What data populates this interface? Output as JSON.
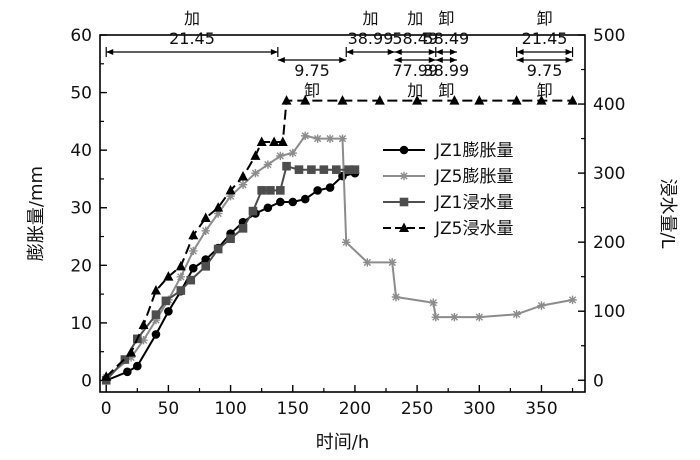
{
  "chart_data": {
    "type": "line",
    "xlabel": "时间/h",
    "ylabel_left": "膨胀量/mm",
    "ylabel_right": "浸水量/L",
    "xlim": [
      -5,
      385
    ],
    "ylim_left": [
      -2,
      60
    ],
    "ylim_right": [
      -17,
      500
    ],
    "xticks": [
      0,
      50,
      100,
      150,
      200,
      250,
      300,
      350
    ],
    "yticks_left": [
      0,
      10,
      20,
      30,
      40,
      50,
      60
    ],
    "yticks_right": [
      0,
      100,
      200,
      300,
      400,
      500
    ],
    "series": [
      {
        "name": "JZ1膨胀量",
        "axis": "left",
        "marker": "circle",
        "color": "#000000",
        "dash": "",
        "x": [
          0,
          17,
          25,
          40,
          50,
          60,
          70,
          80,
          90,
          100,
          110,
          120,
          130,
          140,
          150,
          160,
          170,
          180,
          190,
          200
        ],
        "y": [
          0,
          1.5,
          2.5,
          8,
          12,
          15.5,
          19.5,
          21,
          23,
          25.5,
          27.5,
          29,
          30,
          31,
          31,
          31.5,
          33,
          33.5,
          35.5,
          36
        ]
      },
      {
        "name": "JZ5膨胀量",
        "axis": "left",
        "marker": "star",
        "color": "#8c8c8c",
        "dash": "",
        "x": [
          0,
          20,
          30,
          40,
          50,
          60,
          70,
          80,
          90,
          100,
          110,
          120,
          130,
          140,
          150,
          160,
          170,
          180,
          190,
          193,
          210,
          230,
          233,
          263,
          265,
          280,
          300,
          330,
          350,
          375
        ],
        "y": [
          0.5,
          4,
          7,
          10.5,
          14,
          18,
          22.5,
          26,
          29,
          32,
          34,
          36,
          37.5,
          39,
          39.5,
          42.5,
          42,
          42,
          42,
          24,
          20.5,
          20.5,
          14.5,
          13.5,
          11,
          11,
          11,
          11.5,
          13,
          14
        ]
      },
      {
        "name": "JZ1浸水量",
        "axis": "right",
        "marker": "square",
        "color": "#4d4d4d",
        "dash": "",
        "x": [
          0,
          15,
          25,
          40,
          48,
          60,
          68,
          80,
          90,
          100,
          110,
          118,
          125,
          132,
          140,
          145,
          155,
          165,
          175,
          185,
          195,
          200
        ],
        "y": [
          0,
          30,
          60,
          95,
          115,
          130,
          145,
          165,
          190,
          205,
          220,
          245,
          275,
          275,
          275,
          310,
          305,
          305,
          305,
          305,
          305,
          305
        ]
      },
      {
        "name": "JZ5浸水量",
        "axis": "right",
        "marker": "triangle",
        "color": "#000000",
        "dash": "10,5",
        "x": [
          0,
          20,
          30,
          40,
          50,
          60,
          70,
          80,
          90,
          100,
          110,
          120,
          125,
          135,
          142,
          145,
          160,
          190,
          220,
          250,
          280,
          300,
          330,
          350,
          375
        ],
        "y": [
          5,
          40,
          80,
          130,
          150,
          165,
          210,
          235,
          250,
          275,
          295,
          325,
          345,
          345,
          345,
          405,
          405,
          405,
          405,
          405,
          405,
          405,
          405,
          405,
          405
        ]
      }
    ],
    "top_annotations": {
      "row1": [
        {
          "op": "加",
          "value": "21.45"
        },
        {
          "op": "加",
          "value": "38.99"
        },
        {
          "op": "加",
          "value": "58.49"
        },
        {
          "op": "卸",
          "value": "58.49"
        },
        {
          "op": "卸",
          "value": "21.45"
        }
      ],
      "row2": [
        {
          "op": "卸",
          "value": "9.75"
        },
        {
          "op": "加",
          "value": "77.99"
        },
        {
          "op": "卸",
          "value": "38.99"
        },
        {
          "op": "卸",
          "value": "9.75"
        }
      ],
      "boundaries": [
        0,
        138,
        193,
        232,
        265,
        282,
        330,
        375
      ]
    }
  }
}
